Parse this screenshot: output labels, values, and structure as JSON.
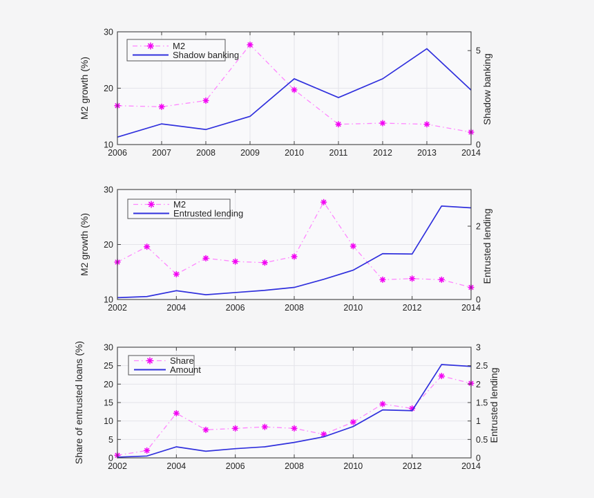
{
  "colors": {
    "background": "#f5f5f6",
    "plot_fill": "#f9f9fb",
    "grid": "#e4e4ea",
    "axis": "#3f3f3f",
    "tick_text": "#242424",
    "label_text": "#1a1a1a",
    "legend_border": "#545454",
    "magenta_marker": "#f200f2",
    "magenta_line": "#ff85ff",
    "blue_line": "#3030dd"
  },
  "chart_data": [
    {
      "type": "line",
      "title": "",
      "x": [
        2006,
        2007,
        2008,
        2009,
        2010,
        2011,
        2012,
        2013,
        2014
      ],
      "xlim": [
        2006,
        2014
      ],
      "xticks": [
        2006,
        2007,
        2008,
        2009,
        2010,
        2011,
        2012,
        2013,
        2014
      ],
      "ylabel_left": "M2 growth (%)",
      "ylabel_right": "Shadow banking",
      "ylim_left": [
        10,
        30
      ],
      "yticks_left": [
        10,
        20,
        30
      ],
      "ylim_right": [
        0,
        6
      ],
      "yticks_right": [
        0,
        5
      ],
      "grid": true,
      "legend_position": "top-left",
      "series": [
        {
          "name": "M2",
          "axis": "left",
          "style": "dash-dot",
          "marker": "asterisk",
          "marker_color": "#f200f2",
          "line_color": "#ff85ff",
          "values": [
            16.9,
            16.7,
            17.8,
            27.7,
            19.7,
            13.6,
            13.8,
            13.6,
            12.2
          ]
        },
        {
          "name": "Shadow banking",
          "axis": "right",
          "style": "solid",
          "marker": "none",
          "line_color": "#3030dd",
          "values": [
            0.4,
            1.1,
            0.8,
            1.5,
            3.5,
            2.5,
            3.5,
            5.1,
            2.9
          ]
        }
      ]
    },
    {
      "type": "line",
      "title": "",
      "x": [
        2002,
        2003,
        2004,
        2005,
        2006,
        2007,
        2008,
        2009,
        2010,
        2011,
        2012,
        2013,
        2014
      ],
      "xlim": [
        2002,
        2014
      ],
      "xticks": [
        2002,
        2004,
        2006,
        2008,
        2010,
        2012,
        2014
      ],
      "ylabel_left": "M2 growth (%)",
      "ylabel_right": "Entrusted lending",
      "ylim_left": [
        10,
        30
      ],
      "yticks_left": [
        10,
        20,
        30
      ],
      "ylim_right": [
        0,
        3
      ],
      "yticks_right": [
        0,
        2
      ],
      "grid": true,
      "legend_position": "top-left",
      "series": [
        {
          "name": "M2",
          "axis": "left",
          "style": "dash-dot",
          "marker": "asterisk",
          "marker_color": "#f200f2",
          "line_color": "#ff85ff",
          "values": [
            16.8,
            19.6,
            14.6,
            17.5,
            16.9,
            16.7,
            17.8,
            27.7,
            19.7,
            13.6,
            13.8,
            13.6,
            12.2
          ]
        },
        {
          "name": "Entrusted lending",
          "axis": "right",
          "style": "solid",
          "marker": "none",
          "line_color": "#3030dd",
          "values": [
            0.05,
            0.08,
            0.24,
            0.13,
            0.19,
            0.25,
            0.33,
            0.55,
            0.8,
            1.25,
            1.24,
            2.55,
            2.5
          ]
        }
      ]
    },
    {
      "type": "line",
      "title": "",
      "x": [
        2002,
        2003,
        2004,
        2005,
        2006,
        2007,
        2008,
        2009,
        2010,
        2011,
        2012,
        2013,
        2014
      ],
      "xlim": [
        2002,
        2014
      ],
      "xticks": [
        2002,
        2004,
        2006,
        2008,
        2010,
        2012,
        2014
      ],
      "ylabel_left": "Share of entrusted loans (%)",
      "ylabel_right": "Entrusted lending",
      "ylim_left": [
        0,
        30
      ],
      "yticks_left": [
        0,
        5,
        10,
        15,
        20,
        25,
        30
      ],
      "ylim_right": [
        0,
        3
      ],
      "yticks_right": [
        0,
        0.5,
        1,
        1.5,
        2,
        2.5,
        3
      ],
      "grid": true,
      "legend_position": "top-left",
      "series": [
        {
          "name": "Share",
          "axis": "left",
          "style": "dash-dot",
          "marker": "asterisk",
          "marker_color": "#f200f2",
          "line_color": "#ff85ff",
          "values": [
            0.7,
            2.0,
            12.1,
            7.6,
            8.0,
            8.4,
            8.0,
            6.4,
            9.7,
            14.6,
            13.4,
            22.2,
            20.2
          ]
        },
        {
          "name": "Amount",
          "axis": "right",
          "style": "solid",
          "marker": "none",
          "line_color": "#3030dd",
          "values": [
            0.02,
            0.05,
            0.3,
            0.18,
            0.25,
            0.3,
            0.42,
            0.57,
            0.85,
            1.3,
            1.28,
            2.53,
            2.48
          ]
        }
      ]
    }
  ]
}
